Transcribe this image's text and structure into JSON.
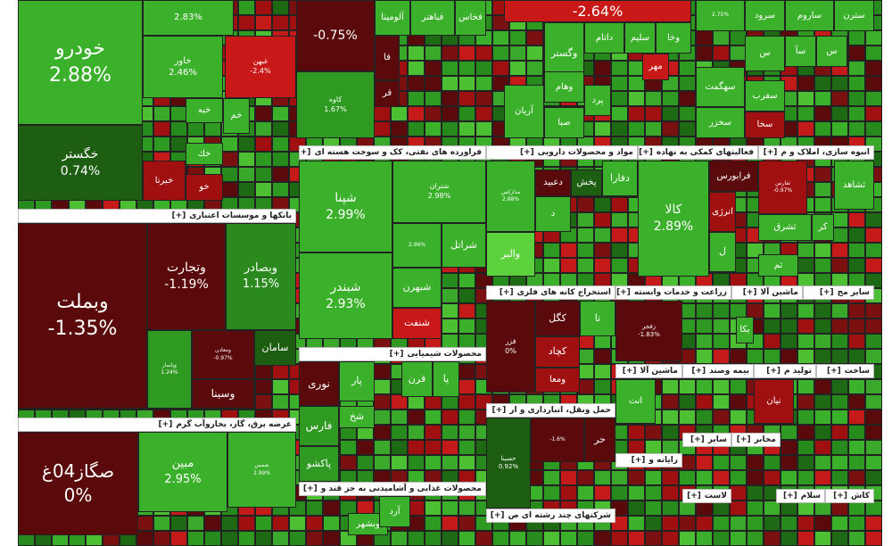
{
  "expand_label": "[+]",
  "sectors": [
    {
      "title": "بانکها و موسسات اعتباری"
    },
    {
      "title": "عرضه برق، گاز، بخاروآب گرم"
    },
    {
      "title": "فراورده های نفتی، کک و سوخت هسته ای"
    },
    {
      "title": "محصولات شیمیایی"
    },
    {
      "title": "محصولات غذایی و آشامیدنی به جز قند و"
    },
    {
      "title": "مواد و محصولات دارویی"
    },
    {
      "title": "استخراج کانه های فلزی"
    },
    {
      "title": "حمل ونقل، انبارداری و ار"
    },
    {
      "title": "شرکتهای چند رشته ای ص"
    },
    {
      "title": "فعالیتهای کمکی به نهاده"
    },
    {
      "title": "انبوه سازی، املاک و م"
    },
    {
      "title": "زراعت و خدمات وابسته"
    },
    {
      "title": "ماشین آلا"
    },
    {
      "title": "سایر مح"
    },
    {
      "title": "ماشین آلا"
    },
    {
      "title": "بیمه وصند"
    },
    {
      "title": "تولید م"
    },
    {
      "title": "ساخت"
    },
    {
      "title": "سایر"
    },
    {
      "title": "مخابر"
    },
    {
      "title": "رایانه و"
    },
    {
      "title": "لاست"
    },
    {
      "title": "سلام"
    },
    {
      "title": "کاش"
    }
  ],
  "tiles": [
    {
      "name": "خودرو",
      "change": "2.88%"
    },
    {
      "name": "خاور",
      "change": "2.46%"
    },
    {
      "name": "غبهن",
      "change": "-2.4%"
    },
    {
      "name": "خگستر",
      "change": "0.74%"
    },
    {
      "name": "خبه"
    },
    {
      "name": "خك"
    },
    {
      "name": "خبرنا"
    },
    {
      "name": "خو"
    },
    {
      "name": "خم"
    },
    {
      "change": "2.83%"
    },
    {
      "name": "وبملت",
      "change": "-1.35%"
    },
    {
      "name": "وتجارت",
      "change": "-1.19%"
    },
    {
      "name": "وبصادر",
      "change": "1.15%"
    },
    {
      "name": "وپاسار",
      "change": "1.24%"
    },
    {
      "name": "ومعادن",
      "change": "-0.97%"
    },
    {
      "name": "وسینا"
    },
    {
      "name": "سامان"
    },
    {
      "name": "صگاز04غ",
      "change": "0%"
    },
    {
      "name": "مبین",
      "change": "2.95%"
    },
    {
      "name": "شمس",
      "change": "2.99%"
    },
    {
      "change": "-0.75%"
    },
    {
      "name": "آلومینا"
    },
    {
      "name": "فباهنر"
    },
    {
      "name": "فخاس"
    },
    {
      "name": "کاوه",
      "change": "1.67%"
    },
    {
      "name": "فا"
    },
    {
      "name": "قر"
    },
    {
      "name": "شپنا",
      "change": "2.99%"
    },
    {
      "name": "شبندر",
      "change": "2.93%"
    },
    {
      "name": "شتران",
      "change": "2.98%"
    },
    {
      "change": "2.96%"
    },
    {
      "name": "شراتل"
    },
    {
      "name": "شبهرن"
    },
    {
      "name": "شنفت"
    },
    {
      "name": "نوری"
    },
    {
      "name": "فارس"
    },
    {
      "name": "پاکشو"
    },
    {
      "name": "شخ"
    },
    {
      "name": "پار"
    },
    {
      "name": "قرن"
    },
    {
      "name": "پا"
    },
    {
      "name": "وبشهر"
    },
    {
      "name": "آرد"
    },
    {
      "change": "-2.64%"
    },
    {
      "name": "وگستر"
    },
    {
      "name": "داتام"
    },
    {
      "name": "سلیم"
    },
    {
      "name": "وخا"
    },
    {
      "name": "مهر"
    },
    {
      "name": "وهام"
    },
    {
      "name": "آریان"
    },
    {
      "name": "صبا"
    },
    {
      "name": "پرد"
    },
    {
      "name": "دعبید"
    },
    {
      "name": "پخش"
    },
    {
      "name": "دفارا"
    },
    {
      "name": "مداركس",
      "change": "2.88%"
    },
    {
      "name": "والبر"
    },
    {
      "name": "د"
    },
    {
      "name": "فزر",
      "change": "0%"
    },
    {
      "name": "کگل"
    },
    {
      "name": "کچاد"
    },
    {
      "name": "ومعا"
    },
    {
      "name": "تا"
    },
    {
      "name": "حسینا",
      "change": "0.92%"
    },
    {
      "change": "-1.6%"
    },
    {
      "name": "حر"
    },
    {
      "name": "کالا",
      "change": "2.89%"
    },
    {
      "name": "فرابورس"
    },
    {
      "name": "انرژی"
    },
    {
      "name": "ل"
    },
    {
      "name": "زفجر",
      "change": "-1.83%"
    },
    {
      "name": "بکا"
    },
    {
      "name": "سترن"
    },
    {
      "name": "ساروم"
    },
    {
      "name": "سرود"
    },
    {
      "name": "سهگمت"
    },
    {
      "name": "سفرب"
    },
    {
      "name": "سخزر"
    },
    {
      "name": "سخا"
    },
    {
      "change": "2.75%"
    },
    {
      "name": "س"
    },
    {
      "name": "سآ"
    },
    {
      "name": "س"
    },
    {
      "name": "ثشاهد"
    },
    {
      "name": "ثفارس",
      "change": "-0.97%"
    },
    {
      "name": "ثشرق"
    },
    {
      "name": "کر"
    },
    {
      "name": "ثم"
    },
    {
      "name": "نیان"
    },
    {
      "name": "انت"
    }
  ]
}
